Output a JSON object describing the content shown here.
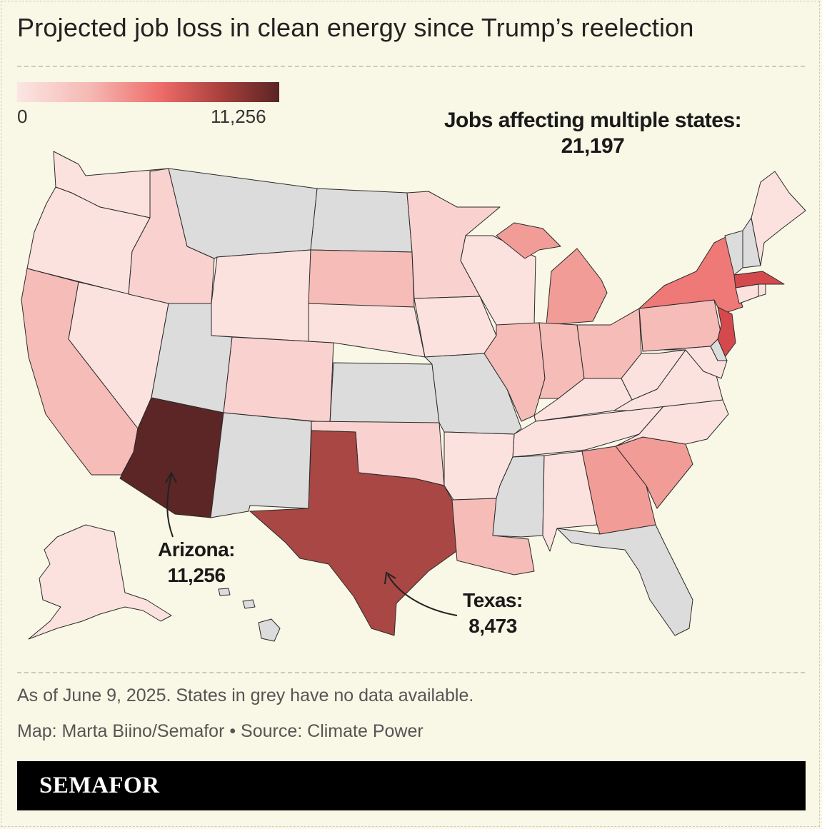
{
  "title": "Projected job loss in clean energy since Trump’s reelection",
  "legend": {
    "min_label": "0",
    "max_label": "11,256",
    "min_value": 0,
    "max_value": 11256,
    "colors": [
      "#fbe6e3",
      "#f5b8b3",
      "#ee6b68",
      "#a8403c",
      "#5a2424"
    ]
  },
  "annotations": {
    "multi_states_label": "Jobs affecting multiple states:",
    "multi_states_value": "21,197",
    "arizona_label": "Arizona:",
    "arizona_value": "11,256",
    "texas_label": "Texas:",
    "texas_value": "8,473"
  },
  "footnote": "As of June 9, 2025. States in grey have no data available.",
  "credit": "Map: Marta Biino/Semafor • Source: Climate Power",
  "brand": "SEMAFOR",
  "colors": {
    "background": "#f9f7e5",
    "no_data": "#dcdcdc",
    "very_light": "#fbe2df",
    "light": "#f9d2cf",
    "light_medium": "#f6bcb8",
    "medium": "#f29c98",
    "medium_strong": "#ee7977",
    "strong": "#d44a4c",
    "dark": "#a84744",
    "darkest": "#5c2626"
  },
  "chart_data": {
    "type": "choropleth",
    "region": "United States",
    "value_label": "Projected clean energy jobs lost",
    "no_data_states": [
      "MT",
      "ND",
      "WY-none",
      "UT",
      "NM",
      "KS",
      "MO",
      "MS",
      "FL",
      "VT",
      "NH",
      "HI",
      "DE"
    ],
    "states": [
      {
        "state": "AZ",
        "value": 11256,
        "shade": "darkest"
      },
      {
        "state": "TX",
        "value": 8473,
        "shade": "dark"
      },
      {
        "state": "NJ",
        "shade": "strong"
      },
      {
        "state": "MA",
        "shade": "strong"
      },
      {
        "state": "NY",
        "shade": "medium_strong"
      },
      {
        "state": "MI",
        "shade": "medium"
      },
      {
        "state": "GA",
        "shade": "medium"
      },
      {
        "state": "SC",
        "shade": "medium"
      },
      {
        "state": "CA",
        "shade": "light_medium"
      },
      {
        "state": "IN",
        "shade": "light_medium"
      },
      {
        "state": "LA",
        "shade": "light_medium"
      },
      {
        "state": "OH",
        "shade": "light_medium"
      },
      {
        "state": "IL",
        "shade": "light_medium"
      },
      {
        "state": "PA",
        "shade": "light_medium"
      },
      {
        "state": "SD",
        "shade": "light_medium"
      },
      {
        "state": "ID",
        "shade": "light"
      },
      {
        "state": "CO",
        "shade": "light"
      },
      {
        "state": "MN",
        "shade": "light"
      },
      {
        "state": "OK",
        "shade": "light"
      },
      {
        "state": "WA",
        "shade": "very_light"
      },
      {
        "state": "OR",
        "shade": "very_light"
      },
      {
        "state": "NV",
        "shade": "very_light"
      },
      {
        "state": "WY",
        "shade": "very_light"
      },
      {
        "state": "NE",
        "shade": "very_light"
      },
      {
        "state": "IA",
        "shade": "very_light"
      },
      {
        "state": "WI",
        "shade": "very_light"
      },
      {
        "state": "AR",
        "shade": "very_light"
      },
      {
        "state": "AL",
        "shade": "very_light"
      },
      {
        "state": "TN",
        "shade": "very_light"
      },
      {
        "state": "KY",
        "shade": "very_light"
      },
      {
        "state": "WV",
        "shade": "very_light"
      },
      {
        "state": "VA",
        "shade": "very_light"
      },
      {
        "state": "NC",
        "shade": "very_light"
      },
      {
        "state": "MD",
        "shade": "very_light"
      },
      {
        "state": "ME",
        "shade": "very_light"
      },
      {
        "state": "CT",
        "shade": "very_light"
      },
      {
        "state": "RI",
        "shade": "very_light"
      },
      {
        "state": "AK",
        "shade": "very_light"
      }
    ]
  }
}
